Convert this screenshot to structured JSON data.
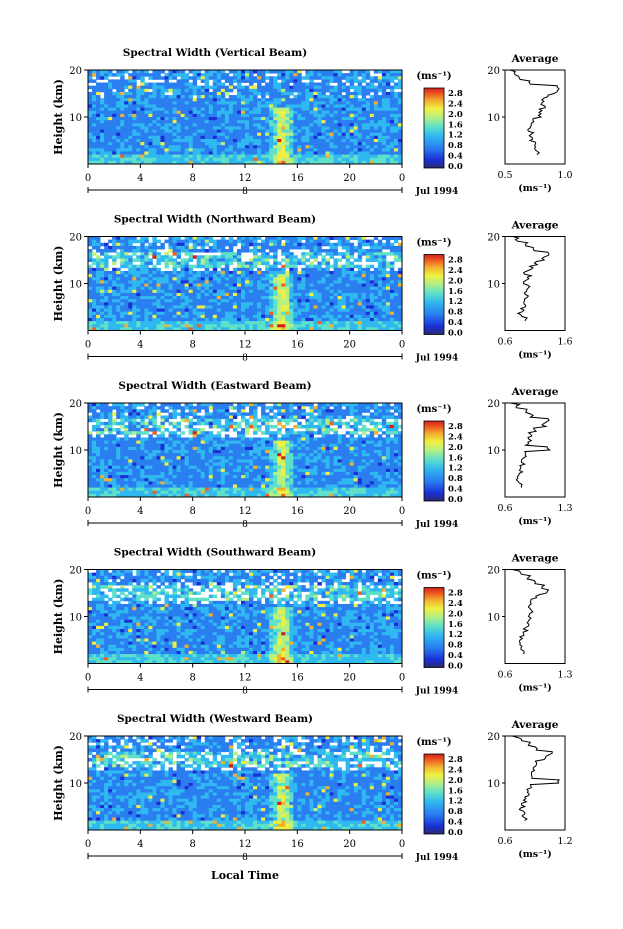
{
  "figure": {
    "xlabel": "Local Time",
    "date_label": "Jul 1994",
    "cb_units": "(ms⁻¹)",
    "avg_title": "Average",
    "ylabel": "Height (km)",
    "colorbar_ticks": [
      "2.8",
      "2.4",
      "2.0",
      "1.6",
      "1.2",
      "0.8",
      "0.4",
      "0.0"
    ],
    "time_ticks": [
      "0",
      "4",
      "8",
      "12",
      "16",
      "20",
      "0"
    ],
    "height_ticks": [
      "20",
      "10"
    ],
    "date_marker": "8",
    "colors": {
      "scale": [
        "#2a2a6e",
        "#1a2fd6",
        "#2a7ef0",
        "#30b8f0",
        "#5fe0c8",
        "#b8f080",
        "#f0f040",
        "#f0b030",
        "#f06020",
        "#d02020"
      ]
    }
  },
  "chart_data": [
    {
      "type": "heatmap",
      "title": "Spectral Width (Vertical Beam)",
      "xlabel": "Local Time",
      "ylabel": "Height (km)",
      "x_range_hours": [
        0,
        24
      ],
      "ylim": [
        0,
        20
      ],
      "colorbar": {
        "units": "(ms⁻¹)",
        "range": [
          0.0,
          2.8
        ]
      },
      "average": {
        "title": "Average",
        "xlabel": "(ms⁻¹)",
        "xticks": [
          "0.5",
          "1.0"
        ],
        "xlim": [
          0.5,
          1.0
        ],
        "height": [
          2,
          3,
          4,
          5,
          6,
          7,
          8,
          9,
          10,
          11,
          12,
          13,
          14,
          15,
          16,
          17,
          18,
          19,
          20
        ],
        "value": [
          0.78,
          0.76,
          0.74,
          0.72,
          0.72,
          0.7,
          0.72,
          0.74,
          0.78,
          0.8,
          0.82,
          0.82,
          0.84,
          0.92,
          0.95,
          0.7,
          0.62,
          0.58,
          0.55
        ]
      }
    },
    {
      "type": "heatmap",
      "title": "Spectral Width (Northward Beam)",
      "xlabel": "Local Time",
      "ylabel": "Height (km)",
      "x_range_hours": [
        0,
        24
      ],
      "ylim": [
        0,
        20
      ],
      "colorbar": {
        "units": "(ms⁻¹)",
        "range": [
          0.0,
          2.8
        ]
      },
      "average": {
        "title": "Average",
        "xlabel": "(ms⁻¹)",
        "xticks": [
          "0.6",
          "1.6"
        ],
        "xlim": [
          0.6,
          1.6
        ],
        "height": [
          2,
          3,
          4,
          5,
          6,
          7,
          8,
          9,
          10,
          11,
          12,
          13,
          14,
          15,
          16,
          17,
          18,
          19,
          20
        ],
        "value": [
          0.95,
          0.85,
          0.9,
          0.92,
          0.95,
          0.98,
          0.95,
          1.0,
          0.92,
          1.0,
          0.95,
          1.05,
          1.1,
          1.25,
          1.3,
          1.1,
          0.95,
          0.8,
          0.7
        ]
      }
    },
    {
      "type": "heatmap",
      "title": "Spectral Width (Eastward Beam)",
      "xlabel": "Local Time",
      "ylabel": "Height (km)",
      "x_range_hours": [
        0,
        24
      ],
      "ylim": [
        0,
        20
      ],
      "colorbar": {
        "units": "(ms⁻¹)",
        "range": [
          0.0,
          2.8
        ]
      },
      "average": {
        "title": "Average",
        "xlabel": "(ms⁻¹)",
        "xticks": [
          "0.6",
          "1.3"
        ],
        "xlim": [
          0.6,
          1.3
        ],
        "height": [
          2,
          3,
          4,
          5,
          6,
          7,
          8,
          9,
          10,
          11,
          12,
          13,
          14,
          15,
          16,
          17,
          18,
          19,
          20
        ],
        "value": [
          0.8,
          0.75,
          0.76,
          0.78,
          0.8,
          0.82,
          0.82,
          0.84,
          1.1,
          0.86,
          0.88,
          0.9,
          0.95,
          1.05,
          1.1,
          0.92,
          0.85,
          0.75,
          0.65
        ]
      }
    },
    {
      "type": "heatmap",
      "title": "Spectral Width (Southward Beam)",
      "xlabel": "Local Time",
      "ylabel": "Height (km)",
      "x_range_hours": [
        0,
        24
      ],
      "ylim": [
        0,
        20
      ],
      "colorbar": {
        "units": "(ms⁻¹)",
        "range": [
          0.0,
          2.8
        ]
      },
      "average": {
        "title": "Average",
        "xlabel": "(ms⁻¹)",
        "xticks": [
          "0.6",
          "1.3"
        ],
        "xlim": [
          0.6,
          1.3
        ],
        "height": [
          2,
          3,
          4,
          5,
          6,
          7,
          8,
          9,
          10,
          11,
          12,
          13,
          14,
          15,
          16,
          17,
          18,
          19,
          20
        ],
        "value": [
          0.82,
          0.8,
          0.78,
          0.8,
          0.82,
          0.84,
          0.86,
          0.88,
          0.9,
          0.92,
          0.9,
          0.92,
          0.98,
          1.1,
          1.05,
          0.95,
          0.88,
          0.78,
          0.68
        ]
      }
    },
    {
      "type": "heatmap",
      "title": "Spectral Width (Westward Beam)",
      "xlabel": "Local Time",
      "ylabel": "Height (km)",
      "x_range_hours": [
        0,
        24
      ],
      "ylim": [
        0,
        20
      ],
      "colorbar": {
        "units": "(ms⁻¹)",
        "range": [
          0.0,
          2.8
        ]
      },
      "average": {
        "title": "Average",
        "xlabel": "(ms⁻¹)",
        "xticks": [
          "0.6",
          "1.2"
        ],
        "xlim": [
          0.6,
          1.2
        ],
        "height": [
          2,
          3,
          4,
          5,
          6,
          7,
          8,
          9,
          10,
          11,
          12,
          13,
          14,
          15,
          16,
          17,
          18,
          19,
          20
        ],
        "value": [
          0.8,
          0.78,
          0.76,
          0.78,
          0.8,
          0.82,
          0.84,
          0.86,
          1.15,
          0.86,
          0.88,
          0.9,
          0.92,
          1.0,
          1.05,
          0.9,
          0.85,
          0.75,
          0.66
        ]
      }
    }
  ]
}
